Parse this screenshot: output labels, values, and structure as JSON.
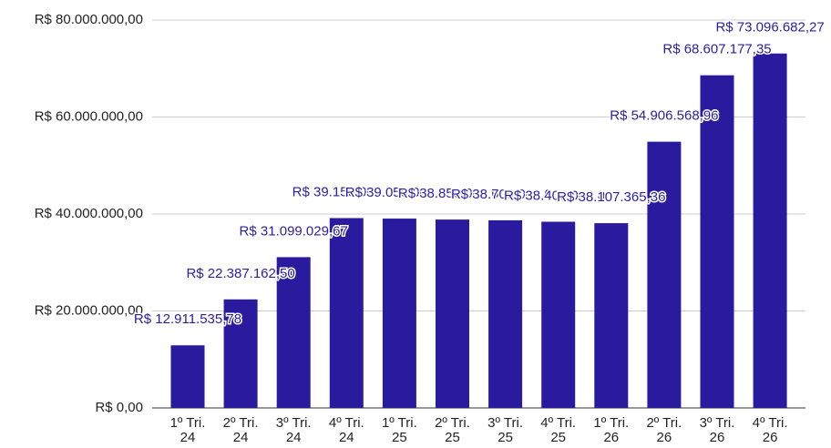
{
  "chart_data": {
    "type": "bar",
    "categories": [
      "1º Tri. 24",
      "2º Tri. 24",
      "3º Tri. 24",
      "4º Tri. 24",
      "1º Tri. 25",
      "2º Tri. 25",
      "3º Tri. 25",
      "4º Tri. 25",
      "1º Tri. 26",
      "2º Tri. 26",
      "3º Tri. 26",
      "4º Tri. 26"
    ],
    "values": [
      12911535.78,
      22387162.5,
      31099029.67,
      39150000,
      39050000,
      38850000,
      38700000,
      38400000,
      38107365.36,
      54906568.96,
      68607177.35,
      73096682.27
    ],
    "value_labels": [
      "R$ 12.911.535,78",
      "R$ 22.387.162,50",
      "R$ 31.099.029,67",
      "R$ 39.150.000,00",
      "R$ 39.050.000,00",
      "R$ 38.850.000,00",
      "R$ 38.700.000,00",
      "R$ 38.400.000,00",
      "R$ 38.107.365,36",
      "R$ 54.906.568,96",
      "R$ 68.607.177,35",
      "R$ 73.096.682,27"
    ],
    "color": "#2a1a9e",
    "ylim": [
      0,
      80000000
    ],
    "yticks": [
      {
        "value": 0,
        "label": "R$ 0,00"
      },
      {
        "value": 20000000,
        "label": "R$ 20.000.000,00"
      },
      {
        "value": 40000000,
        "label": "R$ 40.000.000,00"
      },
      {
        "value": 60000000,
        "label": "R$ 60.000.000,00"
      },
      {
        "value": 80000000,
        "label": "R$ 80.000.000,00"
      }
    ],
    "grid": true
  }
}
